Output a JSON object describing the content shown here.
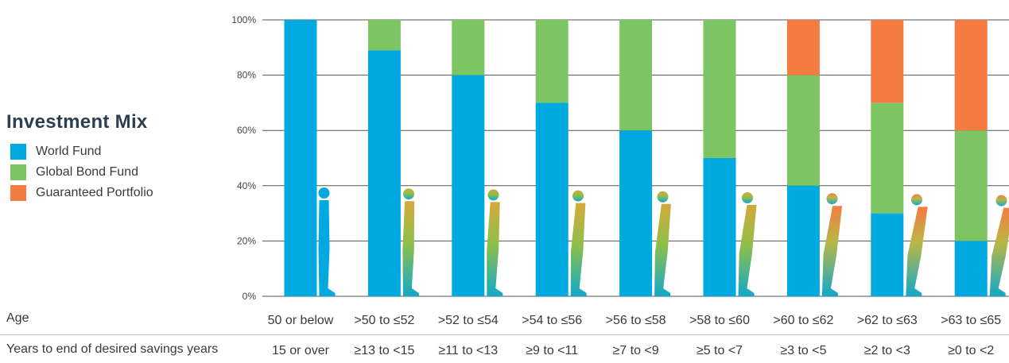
{
  "legend": {
    "title": "Investment Mix",
    "items": [
      {
        "label": "World Fund",
        "color": "#00a9e0"
      },
      {
        "label": "Global Bond Fund",
        "color": "#7dc462"
      },
      {
        "label": "Guaranteed Portfolio",
        "color": "#f47c43"
      }
    ]
  },
  "rows": {
    "age_label": "Age",
    "years_label": "Years to end of desired savings years"
  },
  "chart_data": {
    "type": "bar",
    "stacked": true,
    "categories": [
      "50 or below",
      ">50 to ≤52",
      ">52 to ≤54",
      ">54 to ≤56",
      ">56 to ≤58",
      ">58 to ≤60",
      ">60 to ≤62",
      ">62 to ≤63",
      ">63 to ≤65"
    ],
    "secondary_categories": [
      "15 or over",
      "≥13 to <15",
      "≥11 to <13",
      "≥9 to <11",
      "≥7 to <9",
      "≥5 to <7",
      "≥3 to <5",
      "≥2 to <3",
      "≥0 to <2"
    ],
    "series": [
      {
        "name": "World Fund",
        "color": "#00a9e0",
        "values": [
          100,
          89,
          80,
          70,
          60,
          50,
          40,
          30,
          20
        ]
      },
      {
        "name": "Global Bond Fund",
        "color": "#7dc462",
        "values": [
          0,
          11,
          20,
          30,
          40,
          50,
          40,
          40,
          40
        ]
      },
      {
        "name": "Guaranteed Portfolio",
        "color": "#f47c43",
        "values": [
          0,
          0,
          0,
          0,
          0,
          0,
          20,
          30,
          40
        ]
      }
    ],
    "ylim": [
      0,
      100
    ],
    "yticks": [
      "0%",
      "20%",
      "40%",
      "60%",
      "80%",
      "100%"
    ],
    "grid": true
  }
}
